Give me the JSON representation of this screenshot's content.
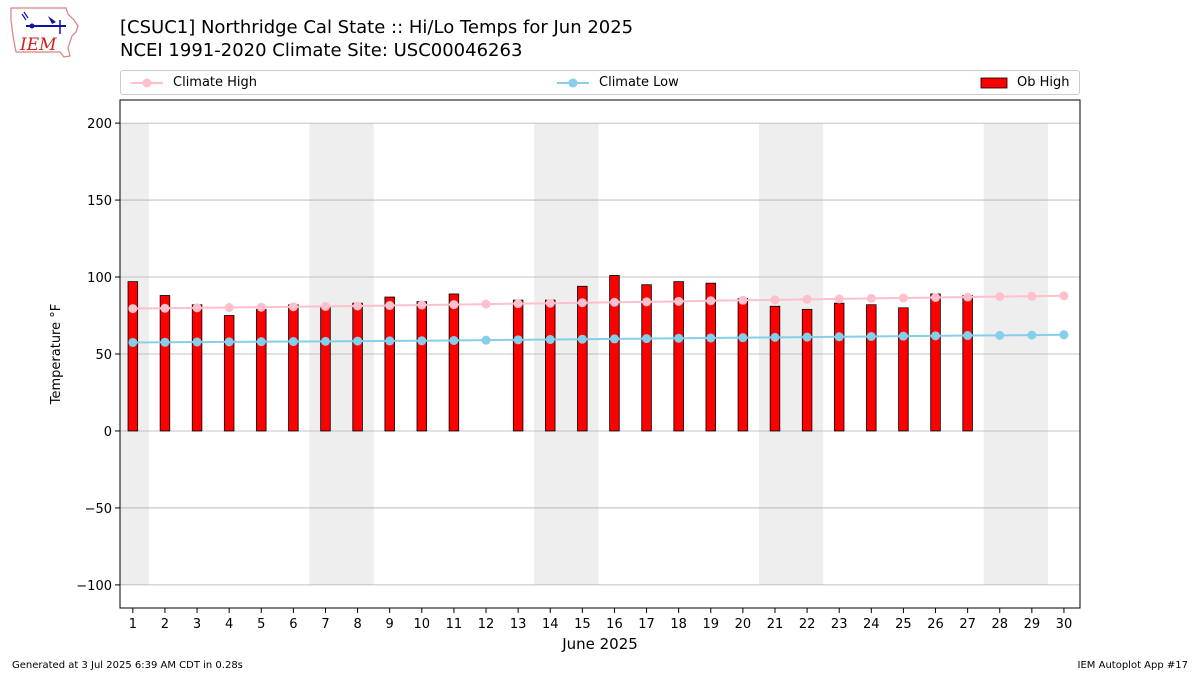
{
  "header": {
    "title_line1": "[CSUC1] Northridge Cal State :: Hi/Lo Temps for Jun 2025",
    "title_line2": "NCEI 1991-2020 Climate Site: USC00046263",
    "logo_text": "IEM"
  },
  "footer": {
    "left": "Generated at 3 Jul 2025 6:39 AM CDT in 0.28s",
    "right": "IEM Autoplot App #17"
  },
  "colors": {
    "ob_high": "#ff0000",
    "climate_high": "#ffc0cb",
    "climate_low": "#87ceeb",
    "weekend_shade": "#eeeeee",
    "grid": "#b0b0b0"
  },
  "chart_data": {
    "type": "bar",
    "title": "[CSUC1] Northridge Cal State :: Hi/Lo Temps for Jun 2025",
    "subtitle": "NCEI 1991-2020 Climate Site: USC00046263",
    "xlabel": "June 2025",
    "ylabel": "Temperature °F",
    "ylim": [
      -115,
      215
    ],
    "yticks": [
      -100,
      -50,
      0,
      50,
      100,
      150,
      200
    ],
    "ytick_labels": [
      "−100",
      "−50",
      "0",
      "50",
      "100",
      "150",
      "200"
    ],
    "x": [
      1,
      2,
      3,
      4,
      5,
      6,
      7,
      8,
      9,
      10,
      11,
      12,
      13,
      14,
      15,
      16,
      17,
      18,
      19,
      20,
      21,
      22,
      23,
      24,
      25,
      26,
      27,
      28,
      29,
      30
    ],
    "x_labels": [
      "1",
      "2",
      "3",
      "4",
      "5",
      "6",
      "7",
      "8",
      "9",
      "10",
      "11",
      "12",
      "13",
      "14",
      "15",
      "16",
      "17",
      "18",
      "19",
      "20",
      "21",
      "22",
      "23",
      "24",
      "25",
      "26",
      "27",
      "28",
      "29",
      "30"
    ],
    "grid": true,
    "legend_position": "top",
    "shaded_day_ranges": [
      [
        1,
        1
      ],
      [
        7,
        8
      ],
      [
        14,
        15
      ],
      [
        21,
        22
      ],
      [
        28,
        29
      ]
    ],
    "shade_range": [
      -100,
      200
    ],
    "series": [
      {
        "name": "Ob High",
        "type": "bar",
        "values": [
          97,
          88,
          82,
          75,
          79,
          82,
          81,
          83,
          87,
          84,
          89,
          null,
          85,
          85,
          94,
          101,
          95,
          97,
          96,
          86,
          81,
          79,
          83,
          82,
          80,
          89,
          88,
          null,
          null,
          null
        ]
      },
      {
        "name": "Climate High",
        "type": "line",
        "values": [
          79.5,
          79.7,
          80.0,
          80.2,
          80.4,
          80.7,
          80.9,
          81.2,
          81.5,
          81.8,
          82.1,
          82.4,
          82.7,
          83.0,
          83.3,
          83.6,
          83.9,
          84.2,
          84.6,
          84.9,
          85.2,
          85.5,
          85.8,
          86.1,
          86.4,
          86.7,
          87.0,
          87.3,
          87.5,
          87.8
        ]
      },
      {
        "name": "Climate Low",
        "type": "line",
        "values": [
          57.5,
          57.6,
          57.8,
          57.9,
          58.0,
          58.1,
          58.2,
          58.4,
          58.5,
          58.6,
          58.8,
          59.0,
          59.2,
          59.4,
          59.6,
          59.8,
          60.0,
          60.2,
          60.4,
          60.6,
          60.8,
          61.0,
          61.2,
          61.4,
          61.6,
          61.8,
          62.0,
          62.1,
          62.3,
          62.5
        ]
      }
    ]
  }
}
